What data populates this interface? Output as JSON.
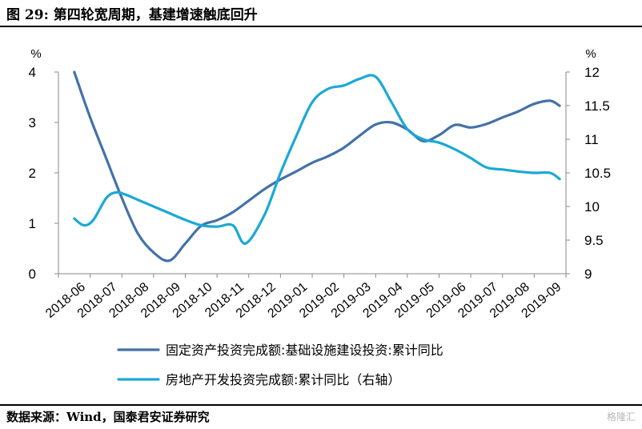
{
  "header": {
    "title": "图 29: 第四轮宽周期，基建增速触底回升"
  },
  "footer": {
    "source": "数据来源：Wind，国泰君安证券研究",
    "watermark": "格隆汇"
  },
  "chart_data": {
    "type": "line",
    "categories": [
      "2018-06",
      "2018-07",
      "2018-08",
      "2018-09",
      "2018-10",
      "2018-11",
      "2018-12",
      "2019-01",
      "2019-02",
      "2019-03",
      "2019-04",
      "2019-05",
      "2019-06",
      "2019-07",
      "2019-08",
      "2019-09"
    ],
    "left_axis": {
      "unit": "%",
      "ylim": [
        0,
        4
      ],
      "ticks": [
        "0",
        "1",
        "2",
        "3",
        "4"
      ]
    },
    "right_axis": {
      "unit": "%",
      "ylim": [
        9,
        12
      ],
      "ticks": [
        "9",
        "9.5",
        "10",
        "10.5",
        "11",
        "11.5",
        "12"
      ]
    },
    "series": [
      {
        "name": "固定资产投资完成额:基础设施建设投资:累计同比",
        "axis": "left",
        "color": "#4472a8",
        "x": [
          0,
          0.5,
          1,
          1.5,
          2,
          2.5,
          3,
          3.5,
          4,
          4.5,
          5,
          5.5,
          6,
          6.5,
          7,
          7.5,
          8,
          8.5,
          9,
          9.5,
          10,
          10.5,
          11,
          11.5,
          12,
          12.5,
          13,
          13.5,
          14,
          14.5,
          15,
          15.3
        ],
        "values": [
          4.0,
          3.1,
          2.3,
          1.5,
          0.8,
          0.42,
          0.26,
          0.6,
          0.95,
          1.06,
          1.22,
          1.45,
          1.68,
          1.87,
          2.03,
          2.2,
          2.33,
          2.5,
          2.74,
          2.96,
          3.0,
          2.86,
          2.63,
          2.75,
          2.95,
          2.9,
          2.97,
          3.1,
          3.22,
          3.37,
          3.43,
          3.33
        ]
      },
      {
        "name": "房地产开发投资完成额:累计同比（右轴）",
        "axis": "right",
        "color": "#1aa9d6",
        "x": [
          0,
          0.3,
          0.6,
          1,
          1.3,
          1.6,
          2,
          2.5,
          3,
          3.5,
          4,
          4.5,
          5,
          5.4,
          6,
          6.5,
          7,
          7.5,
          8,
          8.5,
          9,
          9.5,
          10,
          10.5,
          11,
          11.5,
          12,
          12.5,
          13,
          13.5,
          14,
          14.5,
          15,
          15.3
        ],
        "values": [
          9.82,
          9.72,
          9.8,
          10.12,
          10.21,
          10.18,
          10.1,
          10.0,
          9.9,
          9.8,
          9.72,
          9.7,
          9.72,
          9.45,
          9.88,
          10.5,
          11.05,
          11.55,
          11.75,
          11.8,
          11.9,
          11.93,
          11.55,
          11.15,
          11.0,
          10.95,
          10.85,
          10.72,
          10.58,
          10.55,
          10.52,
          10.5,
          10.5,
          10.41
        ]
      }
    ],
    "legend_position": "bottom",
    "grid": false
  }
}
